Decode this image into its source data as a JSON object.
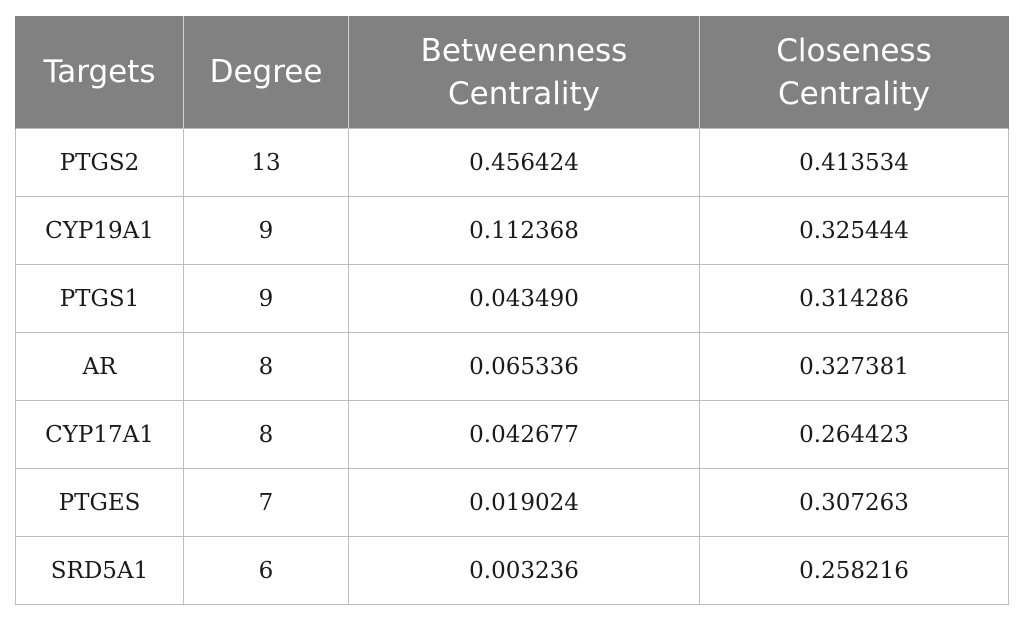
{
  "table": {
    "headers": [
      [
        "Targets"
      ],
      [
        "Degree"
      ],
      [
        "Betweenness",
        "Centrality"
      ],
      [
        "Closeness",
        "Centrality"
      ]
    ],
    "rows": [
      [
        "PTGS2",
        "13",
        "0.456424",
        "0.413534"
      ],
      [
        "CYP19A1",
        "9",
        "0.112368",
        "0.325444"
      ],
      [
        "PTGS1",
        "9",
        "0.043490",
        "0.314286"
      ],
      [
        "AR",
        "8",
        "0.065336",
        "0.327381"
      ],
      [
        "CYP17A1",
        "8",
        "0.042677",
        "0.264423"
      ],
      [
        "PTGES",
        "7",
        "0.019024",
        "0.307263"
      ],
      [
        "SRD5A1",
        "6",
        "0.003236",
        "0.258216"
      ]
    ],
    "colors": {
      "header_background": "#818181",
      "header_text": "#ffffff",
      "border": "#bdbdbd"
    }
  }
}
